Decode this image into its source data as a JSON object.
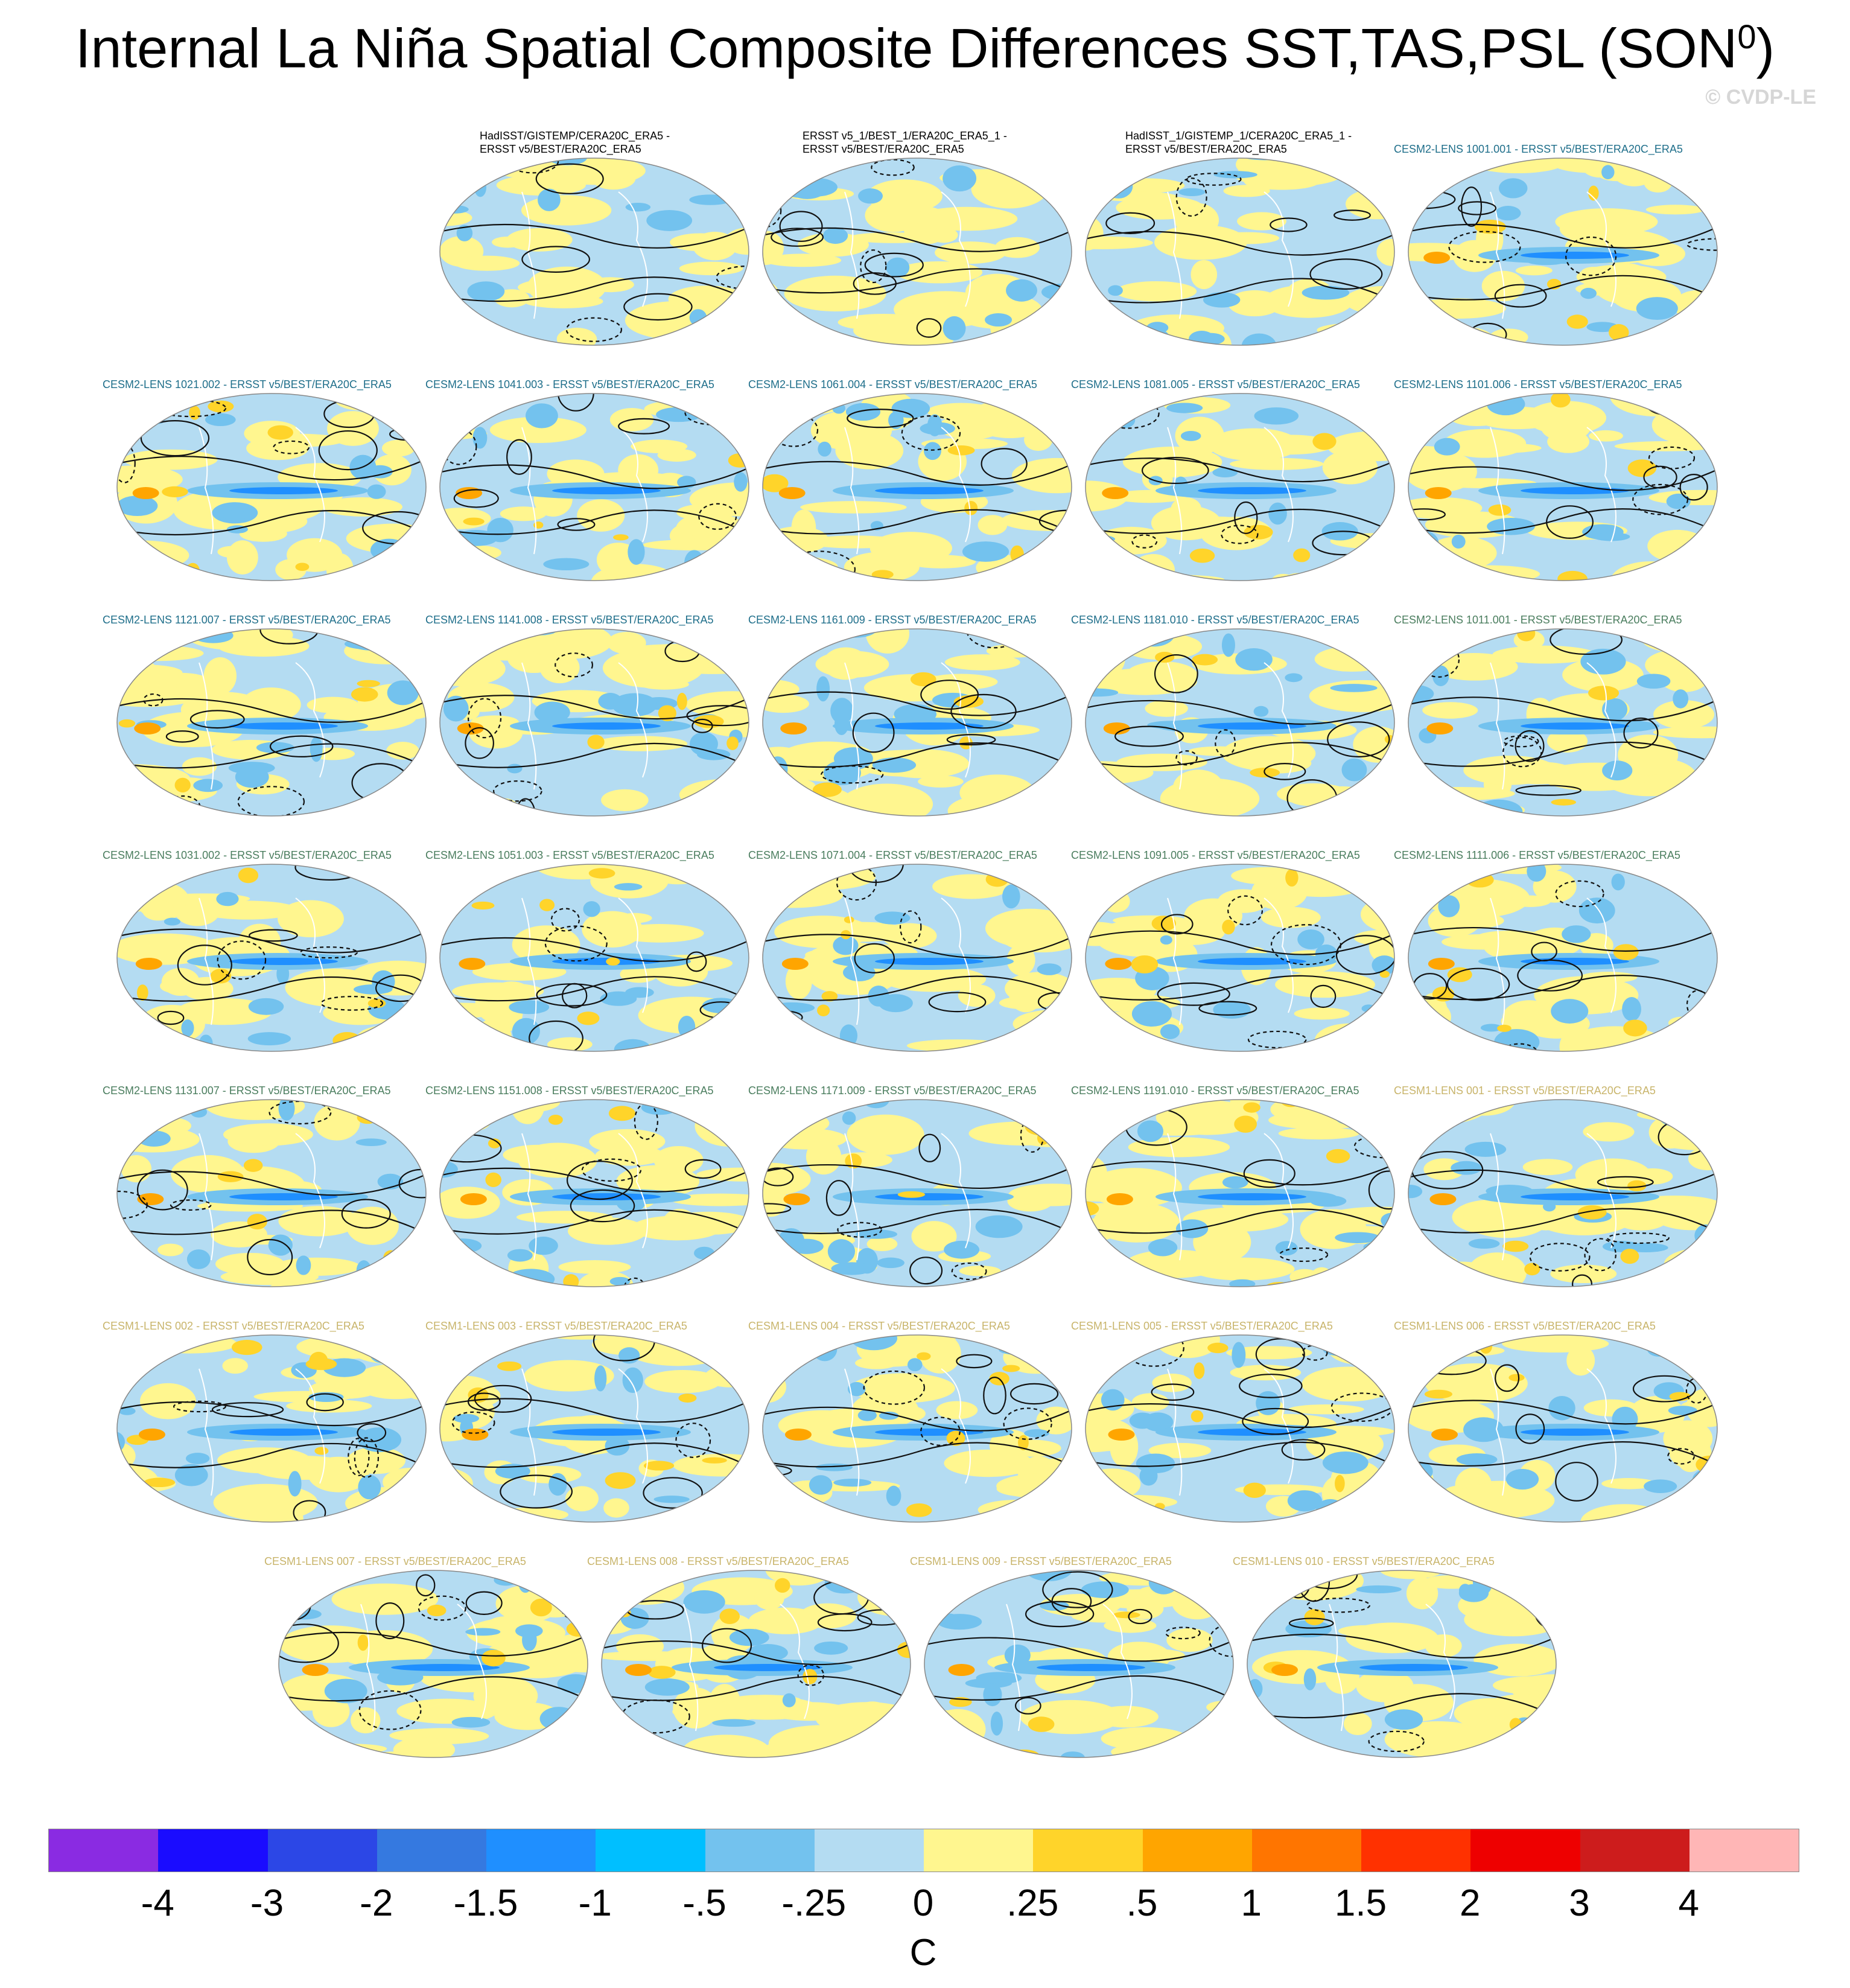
{
  "figure": {
    "title_main": "Internal La Niña Spatial Composite Differences SST,TAS,PSL (SON",
    "title_sup": "0",
    "title_end": ")",
    "copyright": "© CVDP-LE"
  },
  "panels": [
    {
      "title": "HadISST/GISTEMP/CERA20C_ERA5 -\nERSST v5/BEST/ERA20C_ERA5",
      "color": "#000000"
    },
    {
      "title": "ERSST v5_1/BEST_1/ERA20C_ERA5_1 -\nERSST v5/BEST/ERA20C_ERA5",
      "color": "#000000"
    },
    {
      "title": "HadISST_1/GISTEMP_1/CERA20C_ERA5_1 -\nERSST v5/BEST/ERA20C_ERA5",
      "color": "#000000"
    },
    {
      "title": "CESM2-LENS 1001.001 - ERSST v5/BEST/ERA20C_ERA5",
      "color": "#1e6e8a"
    },
    {
      "title": "CESM2-LENS 1021.002 - ERSST v5/BEST/ERA20C_ERA5",
      "color": "#1e6e8a"
    },
    {
      "title": "CESM2-LENS 1041.003 - ERSST v5/BEST/ERA20C_ERA5",
      "color": "#1e6e8a"
    },
    {
      "title": "CESM2-LENS 1061.004 - ERSST v5/BEST/ERA20C_ERA5",
      "color": "#1e6e8a"
    },
    {
      "title": "CESM2-LENS 1081.005 - ERSST v5/BEST/ERA20C_ERA5",
      "color": "#1e6e8a"
    },
    {
      "title": "CESM2-LENS 1101.006 - ERSST v5/BEST/ERA20C_ERA5",
      "color": "#1e6e8a"
    },
    {
      "title": "CESM2-LENS 1121.007 - ERSST v5/BEST/ERA20C_ERA5",
      "color": "#1e6e8a"
    },
    {
      "title": "CESM2-LENS 1141.008 - ERSST v5/BEST/ERA20C_ERA5",
      "color": "#1e6e8a"
    },
    {
      "title": "CESM2-LENS 1161.009 - ERSST v5/BEST/ERA20C_ERA5",
      "color": "#1e6e8a"
    },
    {
      "title": "CESM2-LENS 1181.010 - ERSST v5/BEST/ERA20C_ERA5",
      "color": "#1e6e8a"
    },
    {
      "title": "CESM2-LENS 1011.001 - ERSST v5/BEST/ERA20C_ERA5",
      "color": "#4a7d5e"
    },
    {
      "title": "CESM2-LENS 1031.002 - ERSST v5/BEST/ERA20C_ERA5",
      "color": "#4a7d5e"
    },
    {
      "title": "CESM2-LENS 1051.003 - ERSST v5/BEST/ERA20C_ERA5",
      "color": "#4a7d5e"
    },
    {
      "title": "CESM2-LENS 1071.004 - ERSST v5/BEST/ERA20C_ERA5",
      "color": "#4a7d5e"
    },
    {
      "title": "CESM2-LENS 1091.005 - ERSST v5/BEST/ERA20C_ERA5",
      "color": "#4a7d5e"
    },
    {
      "title": "CESM2-LENS 1111.006 - ERSST v5/BEST/ERA20C_ERA5",
      "color": "#4a7d5e"
    },
    {
      "title": "CESM2-LENS 1131.007 - ERSST v5/BEST/ERA20C_ERA5",
      "color": "#4a7d5e"
    },
    {
      "title": "CESM2-LENS 1151.008 - ERSST v5/BEST/ERA20C_ERA5",
      "color": "#4a7d5e"
    },
    {
      "title": "CESM2-LENS 1171.009 - ERSST v5/BEST/ERA20C_ERA5",
      "color": "#4a7d5e"
    },
    {
      "title": "CESM2-LENS 1191.010 - ERSST v5/BEST/ERA20C_ERA5",
      "color": "#4a7d5e"
    },
    {
      "title": "CESM1-LENS 001 - ERSST v5/BEST/ERA20C_ERA5",
      "color": "#c8b46a"
    },
    {
      "title": "CESM1-LENS 002 - ERSST v5/BEST/ERA20C_ERA5",
      "color": "#c8b46a"
    },
    {
      "title": "CESM1-LENS 003 - ERSST v5/BEST/ERA20C_ERA5",
      "color": "#c8b46a"
    },
    {
      "title": "CESM1-LENS 004 - ERSST v5/BEST/ERA20C_ERA5",
      "color": "#c8b46a"
    },
    {
      "title": "CESM1-LENS 005 - ERSST v5/BEST/ERA20C_ERA5",
      "color": "#c8b46a"
    },
    {
      "title": "CESM1-LENS 006 - ERSST v5/BEST/ERA20C_ERA5",
      "color": "#c8b46a"
    },
    {
      "title": "CESM1-LENS 007 - ERSST v5/BEST/ERA20C_ERA5",
      "color": "#c8b46a"
    },
    {
      "title": "CESM1-LENS 008 - ERSST v5/BEST/ERA20C_ERA5",
      "color": "#c8b46a"
    },
    {
      "title": "CESM1-LENS 009 - ERSST v5/BEST/ERA20C_ERA5",
      "color": "#c8b46a"
    },
    {
      "title": "CESM1-LENS 010 - ERSST v5/BEST/ERA20C_ERA5",
      "color": "#c8b46a"
    }
  ],
  "colorbar": {
    "colors": [
      "#8a2be2",
      "#1a0cff",
      "#2c47e6",
      "#3579e0",
      "#1f8fff",
      "#00bfff",
      "#73c2ee",
      "#b4dcf2",
      "#fff68f",
      "#ffd42a",
      "#ffa500",
      "#ff7500",
      "#ff3100",
      "#ee0000",
      "#cd1c1c",
      "#ffb6b6"
    ],
    "ticks": [
      "-4",
      "-3",
      "-2",
      "-1.5",
      "-1",
      "-.5",
      "-.25",
      "0",
      ".25",
      ".5",
      "1",
      "1.5",
      "2",
      "3",
      "4"
    ],
    "units": "C"
  }
}
